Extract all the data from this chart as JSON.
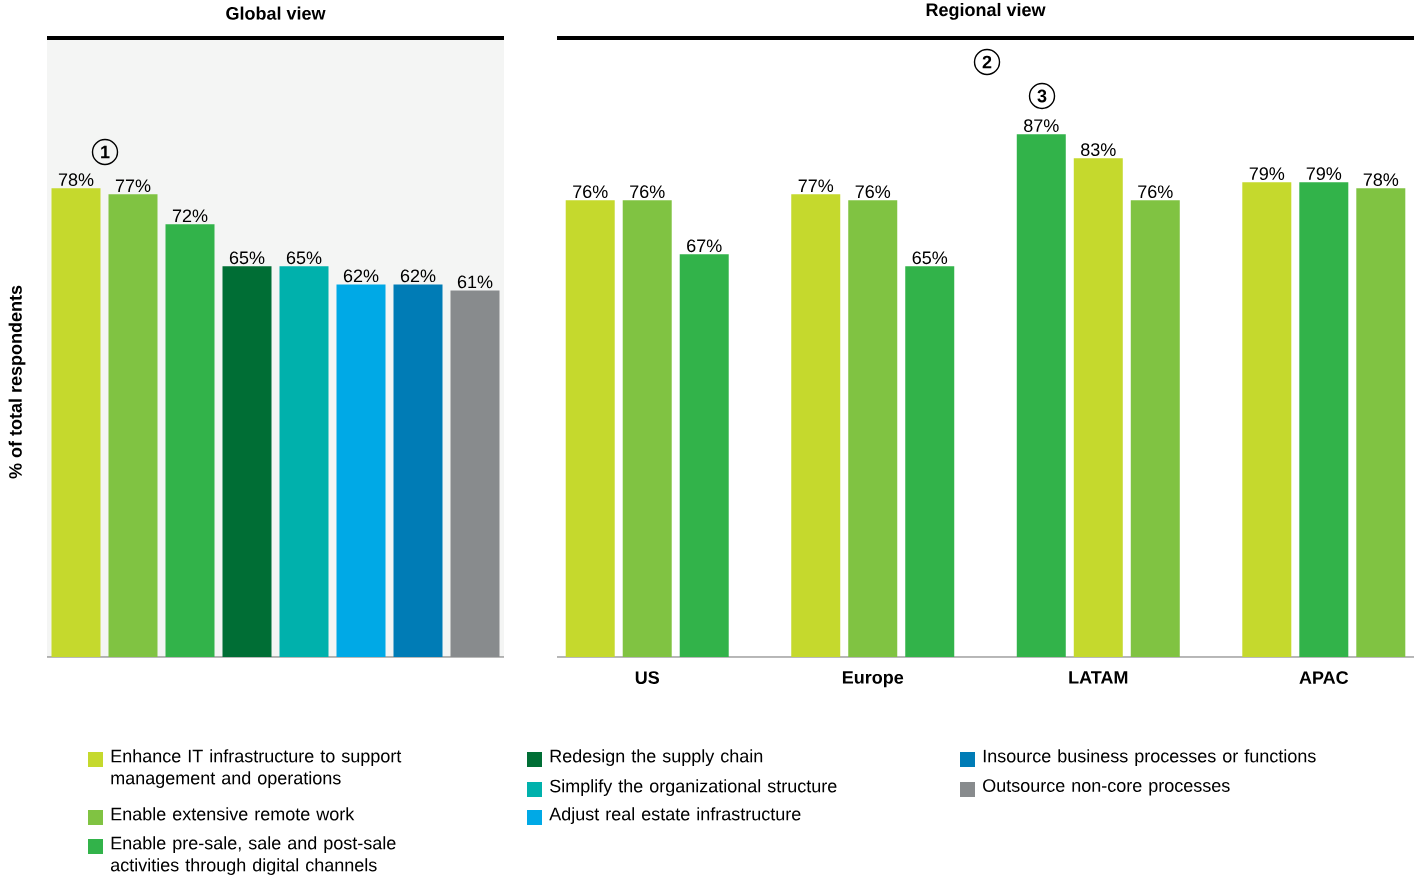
{
  "chart_data": [
    {
      "type": "bar",
      "title": "Global view",
      "ylabel": "% of total respondents",
      "categories": [
        null
      ],
      "ylim": [
        0,
        103
      ],
      "legend": "bottom",
      "series": [
        {
          "name": "Enhance IT infrastructure to support management and operations",
          "color": "#c5d92d",
          "values": [
            78
          ],
          "value_labels": [
            "78%"
          ]
        },
        {
          "name": "Enable extensive remote work",
          "color": "#80c342",
          "values": [
            77
          ],
          "value_labels": [
            "77%"
          ]
        },
        {
          "name": "Enable pre-sale, sale and post-sale activities through digital channels",
          "color": "#32b34a",
          "values": [
            72
          ],
          "value_labels": [
            "72%"
          ]
        },
        {
          "name": "Redesign the supply chain",
          "color": "#006e35",
          "values": [
            65
          ],
          "value_labels": [
            "65%"
          ]
        },
        {
          "name": "Simplify the organizational structure",
          "color": "#00b1ac",
          "values": [
            65
          ],
          "value_labels": [
            "65%"
          ]
        },
        {
          "name": "Adjust real estate infrastructure",
          "color": "#00a9e6",
          "values": [
            62
          ],
          "value_labels": [
            "62%"
          ]
        },
        {
          "name": "Insource business processes or functions",
          "color": "#007cb6",
          "values": [
            62
          ],
          "value_labels": [
            "62%"
          ]
        },
        {
          "name": "Outsource non-core processes",
          "color": "#888b8d",
          "values": [
            61
          ],
          "value_labels": [
            "61%"
          ]
        }
      ],
      "annotations": [
        "1"
      ]
    },
    {
      "type": "bar",
      "title": "Regional view",
      "categories": [
        "US",
        "Europe",
        "LATAM",
        "APAC"
      ],
      "ylim": [
        0,
        103
      ],
      "series": [
        {
          "colors": [
            "#c5d92d",
            "#c5d92d",
            "#32b34a",
            "#c5d92d"
          ],
          "values": [
            76,
            77,
            87,
            79
          ],
          "value_labels": [
            "76%",
            "77%",
            "87%",
            "79%"
          ]
        },
        {
          "colors": [
            "#80c342",
            "#80c342",
            "#c5d92d",
            "#32b34a"
          ],
          "values": [
            76,
            76,
            83,
            79
          ],
          "value_labels": [
            "76%",
            "76%",
            "83%",
            "79%"
          ]
        },
        {
          "colors": [
            "#32b34a",
            "#32b34a",
            "#80c342",
            "#80c342"
          ],
          "values": [
            67,
            65,
            76,
            78
          ],
          "value_labels": [
            "67%",
            "65%",
            "76%",
            "78%"
          ]
        }
      ],
      "annotations": [
        "2",
        "3"
      ]
    }
  ]
}
